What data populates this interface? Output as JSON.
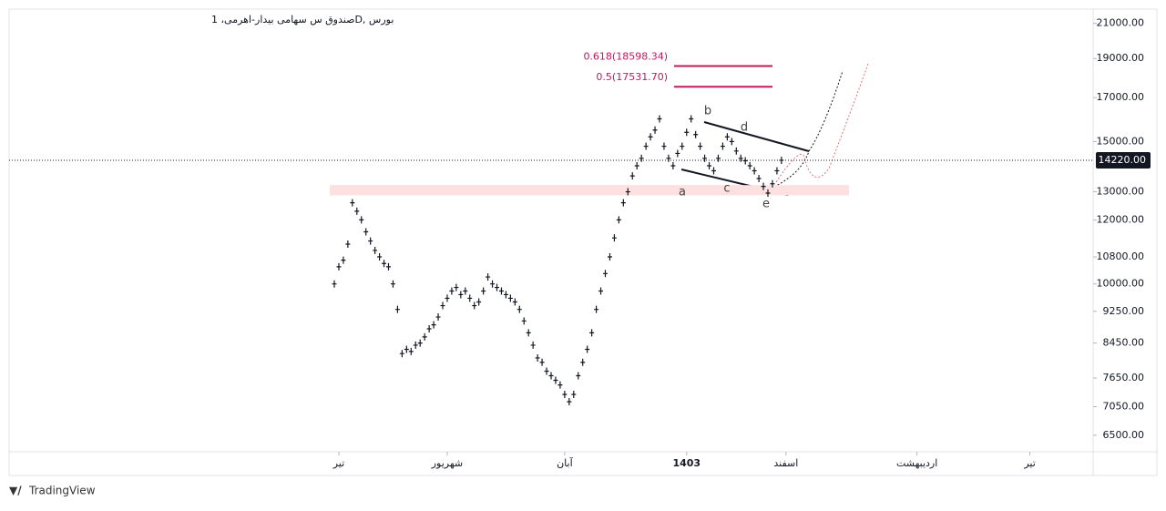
{
  "chart_data": {
    "type": "bar-ticks",
    "title": "بورس ,Dصندوق س سهامی بیدار-اهرمی، 1",
    "log_scale": true,
    "color": "#131722",
    "values": [
      10000,
      10500,
      10700,
      11200,
      12600,
      12300,
      12000,
      11600,
      11300,
      11000,
      10800,
      10600,
      10500,
      10000,
      9300,
      8200,
      8300,
      8250,
      8400,
      8450,
      8600,
      8800,
      8900,
      9100,
      9400,
      9600,
      9800,
      9900,
      9700,
      9800,
      9600,
      9400,
      9500,
      9800,
      10200,
      10000,
      9900,
      9800,
      9700,
      9600,
      9500,
      9300,
      9000,
      8700,
      8400,
      8100,
      8000,
      7800,
      7700,
      7600,
      7500,
      7300,
      7150,
      7300,
      7700,
      8000,
      8300,
      8700,
      9300,
      9800,
      10300,
      10800,
      11400,
      12000,
      12600,
      13000,
      13600,
      14000,
      14300,
      14800,
      15200,
      15500,
      16000,
      14800,
      14300,
      14000,
      14500,
      14800,
      15400,
      16000,
      15300,
      14800,
      14300,
      14000,
      13800,
      14300,
      14800,
      15200,
      15000,
      14600,
      14300,
      14200,
      14000,
      13800,
      13500,
      13200,
      12950,
      13300,
      13800,
      14220
    ],
    "xlim": [
      -72,
      168
    ],
    "xticks": [
      {
        "value": 1,
        "label": "تیر"
      },
      {
        "value": 25,
        "label": "شهریور"
      },
      {
        "value": 51,
        "label": "آبان"
      },
      {
        "value": 78,
        "label": "1403"
      },
      {
        "value": 100,
        "label": "اسفند"
      },
      {
        "value": 129,
        "label": "اردیبهشت"
      },
      {
        "value": 154,
        "label": "تیر"
      }
    ],
    "ylim": [
      6200,
      21870
    ],
    "yticks": [
      {
        "value": 21000,
        "label": "21000.00"
      },
      {
        "value": 19000,
        "label": "19000.00"
      },
      {
        "value": 17000,
        "label": "17000.00"
      },
      {
        "value": 15000,
        "label": "15000.00"
      },
      {
        "value": 13000,
        "label": "13000.00"
      },
      {
        "value": 12000,
        "label": "12000.00"
      },
      {
        "value": 10800,
        "label": "10800.00"
      },
      {
        "value": 10000,
        "label": "10000.00"
      },
      {
        "value": 9250,
        "label": "9250.00"
      },
      {
        "value": 8450,
        "label": "8450.00"
      },
      {
        "value": 7650,
        "label": "7650.00"
      },
      {
        "value": 7050,
        "label": "7050.00"
      },
      {
        "value": 6500,
        "label": "6500.00"
      }
    ],
    "last_price": {
      "value": 14220,
      "label": "14220.00"
    },
    "levels": [
      {
        "value": 18598.34,
        "label": "0.618(18598.34)",
        "color": "#c2185b"
      },
      {
        "value": 17531.7,
        "label": "0.5(17531.70)",
        "color": "#c2185b"
      }
    ],
    "zone": {
      "low": 12870,
      "high": 13250,
      "color": "#fde0e0"
    },
    "wave_labels": [
      "a",
      "b",
      "c",
      "d",
      "e"
    ],
    "footer": "TradingView"
  }
}
